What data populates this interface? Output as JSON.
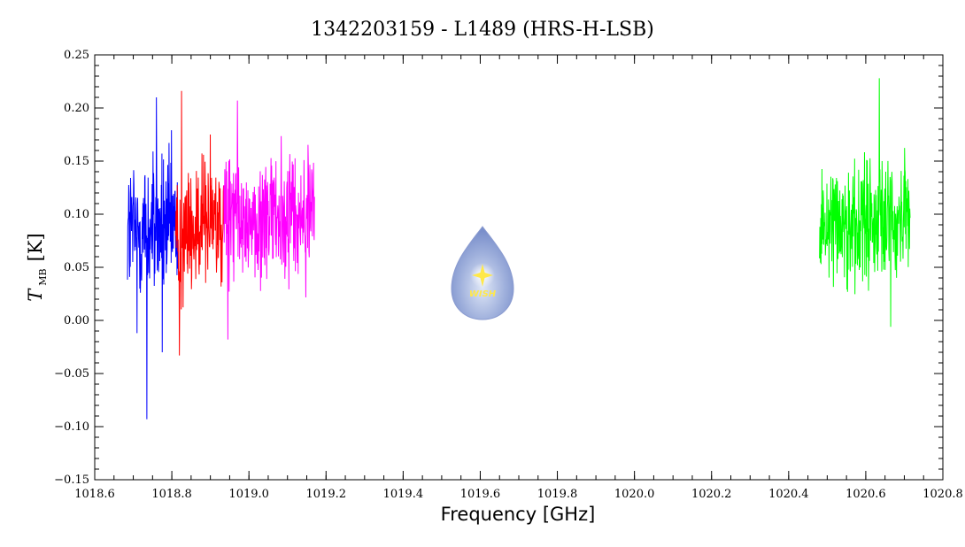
{
  "chart_data": {
    "type": "line",
    "title": "1342203159 - L1489 (HRS-H-LSB)",
    "xlabel": "Frequency [GHz]",
    "ylabel_main": "T",
    "ylabel_sub": "MB",
    "ylabel_unit": "[K]",
    "xlim": [
      1018.6,
      1020.8
    ],
    "ylim": [
      -0.15,
      0.25
    ],
    "x_major_ticks": [
      1018.6,
      1018.8,
      1019.0,
      1019.2,
      1019.4,
      1019.6,
      1019.8,
      1020.0,
      1020.2,
      1020.4,
      1020.6,
      1020.8
    ],
    "x_tick_labels": [
      "1018.6",
      "1018.8",
      "1019.0",
      "1019.2",
      "1019.4",
      "1019.6",
      "1019.8",
      "1020.0",
      "1020.2",
      "1020.4",
      "1020.6",
      "1020.8"
    ],
    "y_major_ticks": [
      -0.15,
      -0.1,
      -0.05,
      0.0,
      0.05,
      0.1,
      0.15,
      0.2,
      0.25
    ],
    "y_tick_labels": [
      "−0.15",
      "−0.10",
      "−0.05",
      "0.00",
      "0.05",
      "0.10",
      "0.15",
      "0.20",
      "0.25"
    ],
    "grid": false,
    "watermark_text": "WISH",
    "series": [
      {
        "color": "#0000ff",
        "x_range": [
          1018.685,
          1018.815
        ],
        "mean": 0.085,
        "noise": 0.035,
        "spikes": [
          [
            1018.735,
            -0.093
          ],
          [
            1018.76,
            0.21
          ],
          [
            1018.71,
            -0.012
          ],
          [
            1018.775,
            -0.03
          ]
        ]
      },
      {
        "color": "#ff0000",
        "x_range": [
          1018.81,
          1018.935
        ],
        "mean": 0.085,
        "noise": 0.032,
        "spikes": [
          [
            1018.825,
            0.216
          ],
          [
            1018.82,
            -0.033
          ],
          [
            1018.9,
            0.175
          ]
        ]
      },
      {
        "color": "#ff00ff",
        "x_range": [
          1018.935,
          1019.17
        ],
        "mean": 0.095,
        "noise": 0.032,
        "spikes": [
          [
            1018.97,
            0.207
          ],
          [
            1018.945,
            -0.018
          ]
        ]
      },
      {
        "color": "#00ff00",
        "x_range": [
          1020.48,
          1020.715
        ],
        "mean": 0.095,
        "noise": 0.03,
        "spikes": [
          [
            1020.635,
            0.228
          ],
          [
            1020.665,
            -0.006
          ]
        ]
      }
    ]
  }
}
